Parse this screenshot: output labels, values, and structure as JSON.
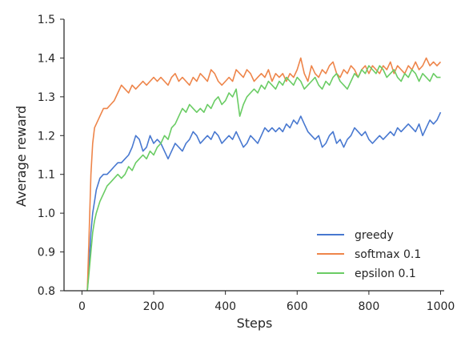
{
  "chart_data": {
    "type": "line",
    "title": "",
    "xlabel": "Steps",
    "ylabel": "Average reward",
    "xlim": [
      -50,
      1010
    ],
    "ylim": [
      0.8,
      1.5
    ],
    "xticks": [
      0,
      200,
      400,
      600,
      800,
      1000
    ],
    "yticks": [
      0.8,
      0.9,
      1.0,
      1.1,
      1.2,
      1.3,
      1.4,
      1.5
    ],
    "xtick_labels": [
      "0",
      "200",
      "400",
      "600",
      "800",
      "1000"
    ],
    "ytick_labels": [
      "0.8",
      "0.9",
      "1.0",
      "1.1",
      "1.2",
      "1.3",
      "1.4",
      "1.5"
    ],
    "grid": false,
    "legend_position": "lower-right",
    "series": [
      {
        "name": "greedy",
        "color": "#4878d0",
        "x": [
          15,
          20,
          25,
          30,
          35,
          40,
          50,
          60,
          70,
          80,
          90,
          100,
          110,
          120,
          130,
          140,
          150,
          160,
          170,
          180,
          190,
          200,
          210,
          220,
          230,
          240,
          250,
          260,
          270,
          280,
          290,
          300,
          310,
          320,
          330,
          340,
          350,
          360,
          370,
          380,
          390,
          400,
          410,
          420,
          430,
          440,
          450,
          460,
          470,
          480,
          490,
          500,
          510,
          520,
          530,
          540,
          550,
          560,
          570,
          580,
          590,
          600,
          610,
          620,
          630,
          640,
          650,
          660,
          670,
          680,
          690,
          700,
          710,
          720,
          730,
          740,
          750,
          760,
          770,
          780,
          790,
          800,
          810,
          820,
          830,
          840,
          850,
          860,
          870,
          880,
          890,
          900,
          910,
          920,
          930,
          940,
          950,
          960,
          970,
          980,
          990,
          1000
        ],
        "y": [
          0.8,
          0.87,
          0.95,
          1.0,
          1.03,
          1.06,
          1.09,
          1.1,
          1.1,
          1.11,
          1.12,
          1.13,
          1.13,
          1.14,
          1.15,
          1.17,
          1.2,
          1.19,
          1.16,
          1.17,
          1.2,
          1.18,
          1.19,
          1.18,
          1.16,
          1.14,
          1.16,
          1.18,
          1.17,
          1.16,
          1.18,
          1.19,
          1.21,
          1.2,
          1.18,
          1.19,
          1.2,
          1.19,
          1.21,
          1.2,
          1.18,
          1.19,
          1.2,
          1.19,
          1.21,
          1.19,
          1.17,
          1.18,
          1.2,
          1.19,
          1.18,
          1.2,
          1.22,
          1.21,
          1.22,
          1.21,
          1.22,
          1.21,
          1.23,
          1.22,
          1.24,
          1.23,
          1.25,
          1.23,
          1.21,
          1.2,
          1.19,
          1.2,
          1.17,
          1.18,
          1.2,
          1.21,
          1.18,
          1.19,
          1.17,
          1.19,
          1.2,
          1.22,
          1.21,
          1.2,
          1.21,
          1.19,
          1.18,
          1.19,
          1.2,
          1.19,
          1.2,
          1.21,
          1.2,
          1.22,
          1.21,
          1.22,
          1.23,
          1.22,
          1.21,
          1.23,
          1.2,
          1.22,
          1.24,
          1.23,
          1.24,
          1.26
        ]
      },
      {
        "name": "softmax 0.1",
        "color": "#ee854a",
        "x": [
          15,
          20,
          25,
          30,
          35,
          40,
          50,
          60,
          70,
          80,
          90,
          100,
          110,
          120,
          130,
          140,
          150,
          160,
          170,
          180,
          190,
          200,
          210,
          220,
          230,
          240,
          250,
          260,
          270,
          280,
          290,
          300,
          310,
          320,
          330,
          340,
          350,
          360,
          370,
          380,
          390,
          400,
          410,
          420,
          430,
          440,
          450,
          460,
          470,
          480,
          490,
          500,
          510,
          520,
          530,
          540,
          550,
          560,
          570,
          580,
          590,
          600,
          610,
          620,
          630,
          640,
          650,
          660,
          670,
          680,
          690,
          700,
          710,
          720,
          730,
          740,
          750,
          760,
          770,
          780,
          790,
          800,
          810,
          820,
          830,
          840,
          850,
          860,
          870,
          880,
          890,
          900,
          910,
          920,
          930,
          940,
          950,
          960,
          970,
          980,
          990,
          1000
        ],
        "y": [
          0.8,
          0.95,
          1.1,
          1.18,
          1.22,
          1.23,
          1.25,
          1.27,
          1.27,
          1.28,
          1.29,
          1.31,
          1.33,
          1.32,
          1.31,
          1.33,
          1.32,
          1.33,
          1.34,
          1.33,
          1.34,
          1.35,
          1.34,
          1.35,
          1.34,
          1.33,
          1.35,
          1.36,
          1.34,
          1.35,
          1.34,
          1.33,
          1.35,
          1.34,
          1.36,
          1.35,
          1.34,
          1.37,
          1.36,
          1.34,
          1.33,
          1.34,
          1.35,
          1.34,
          1.37,
          1.36,
          1.35,
          1.37,
          1.36,
          1.34,
          1.35,
          1.36,
          1.35,
          1.37,
          1.34,
          1.36,
          1.35,
          1.36,
          1.34,
          1.36,
          1.35,
          1.37,
          1.4,
          1.36,
          1.34,
          1.38,
          1.36,
          1.35,
          1.37,
          1.36,
          1.38,
          1.39,
          1.36,
          1.35,
          1.37,
          1.36,
          1.38,
          1.37,
          1.35,
          1.37,
          1.38,
          1.36,
          1.38,
          1.37,
          1.36,
          1.38,
          1.37,
          1.39,
          1.36,
          1.38,
          1.37,
          1.36,
          1.38,
          1.37,
          1.39,
          1.37,
          1.38,
          1.4,
          1.38,
          1.39,
          1.38,
          1.39
        ]
      },
      {
        "name": "epsilon 0.1",
        "color": "#6acc64",
        "x": [
          15,
          20,
          25,
          30,
          35,
          40,
          50,
          60,
          70,
          80,
          90,
          100,
          110,
          120,
          130,
          140,
          150,
          160,
          170,
          180,
          190,
          200,
          210,
          220,
          230,
          240,
          250,
          260,
          270,
          280,
          290,
          300,
          310,
          320,
          330,
          340,
          350,
          360,
          370,
          380,
          390,
          400,
          410,
          420,
          430,
          440,
          450,
          460,
          470,
          480,
          490,
          500,
          510,
          520,
          530,
          540,
          550,
          560,
          570,
          580,
          590,
          600,
          610,
          620,
          630,
          640,
          650,
          660,
          670,
          680,
          690,
          700,
          710,
          720,
          730,
          740,
          750,
          760,
          770,
          780,
          790,
          800,
          810,
          820,
          830,
          840,
          850,
          860,
          870,
          880,
          890,
          900,
          910,
          920,
          930,
          940,
          950,
          960,
          970,
          980,
          990,
          1000
        ],
        "y": [
          0.8,
          0.85,
          0.9,
          0.95,
          0.98,
          1.0,
          1.03,
          1.05,
          1.07,
          1.08,
          1.09,
          1.1,
          1.09,
          1.1,
          1.12,
          1.11,
          1.13,
          1.14,
          1.15,
          1.14,
          1.16,
          1.15,
          1.17,
          1.18,
          1.2,
          1.19,
          1.22,
          1.23,
          1.25,
          1.27,
          1.26,
          1.28,
          1.27,
          1.26,
          1.27,
          1.26,
          1.28,
          1.27,
          1.29,
          1.3,
          1.28,
          1.29,
          1.31,
          1.3,
          1.32,
          1.25,
          1.28,
          1.3,
          1.31,
          1.32,
          1.31,
          1.33,
          1.32,
          1.34,
          1.33,
          1.32,
          1.34,
          1.33,
          1.35,
          1.34,
          1.33,
          1.35,
          1.34,
          1.32,
          1.33,
          1.34,
          1.35,
          1.33,
          1.32,
          1.34,
          1.33,
          1.35,
          1.36,
          1.34,
          1.33,
          1.32,
          1.34,
          1.36,
          1.35,
          1.37,
          1.36,
          1.38,
          1.37,
          1.36,
          1.38,
          1.37,
          1.35,
          1.36,
          1.37,
          1.35,
          1.34,
          1.36,
          1.35,
          1.37,
          1.36,
          1.34,
          1.36,
          1.35,
          1.34,
          1.36,
          1.35,
          1.35
        ]
      }
    ]
  }
}
